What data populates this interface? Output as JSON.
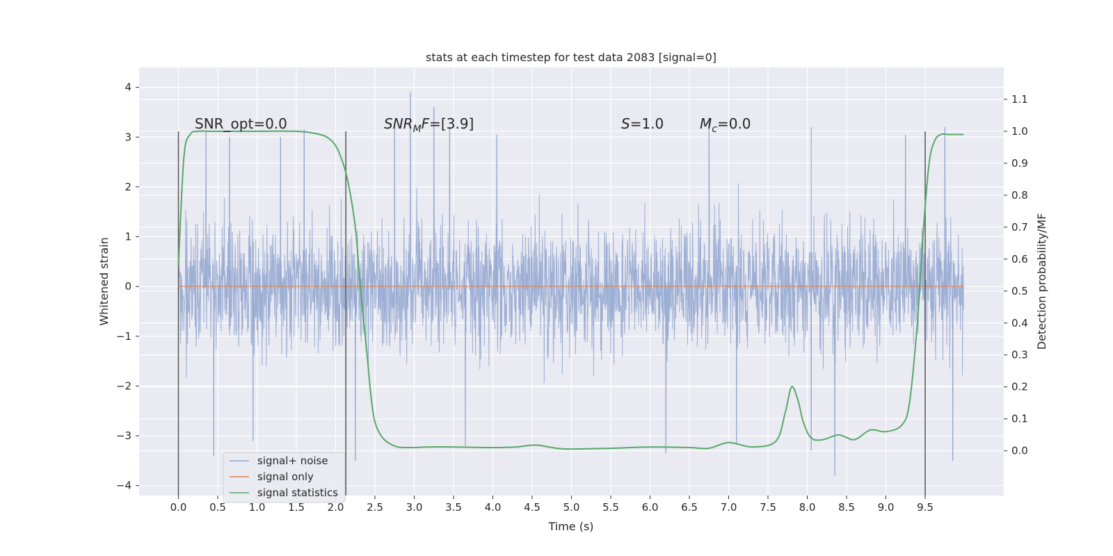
{
  "chart_data": {
    "type": "line",
    "title": "stats at each timestep for test data 2083 [signal=0]",
    "xlabel": "Time (s)",
    "ylabel": "Whitened strain",
    "y2label": "Detection probability/MF",
    "xlim": [
      -0.5,
      10.5
    ],
    "ylim": [
      -4.2,
      4.4
    ],
    "y2lim": [
      -0.14,
      1.2
    ],
    "x_ticks": [
      0.0,
      0.5,
      1.0,
      1.5,
      2.0,
      2.5,
      3.0,
      3.5,
      4.0,
      4.5,
      5.0,
      5.5,
      6.0,
      6.5,
      7.0,
      7.5,
      8.0,
      8.5,
      9.0,
      9.5
    ],
    "x_tick_labels": [
      "0.0",
      "0.5",
      "1.0",
      "1.5",
      "2.0",
      "2.5",
      "3.0",
      "3.5",
      "4.0",
      "4.5",
      "5.0",
      "5.5",
      "6.0",
      "6.5",
      "7.0",
      "7.5",
      "8.0",
      "8.5",
      "9.0",
      "9.5"
    ],
    "y_ticks": [
      4,
      3,
      2,
      1,
      0,
      -1,
      -2,
      -3,
      -4
    ],
    "y_tick_labels": [
      "4",
      "3",
      "2",
      "1",
      "0",
      "−1",
      "−2",
      "−3",
      "−4"
    ],
    "y2_ticks": [
      1.1,
      1.0,
      0.9,
      0.8,
      0.7,
      0.6,
      0.5,
      0.4,
      0.3,
      0.2,
      0.1,
      0.0
    ],
    "y2_tick_labels": [
      "1.1",
      "1.0",
      "0.9",
      "0.8",
      "0.7",
      "0.6",
      "0.5",
      "0.4",
      "0.3",
      "0.2",
      "0.1",
      "0.0"
    ],
    "grid": true,
    "legend_position": "lower-left",
    "annotations": {
      "snr_opt": "SNR_opt=0.0",
      "snr_mf_sym": "SNR",
      "snr_mf_sub": "M",
      "snr_mf_sym2": "F",
      "snr_mf_val": "=[3.9]",
      "s_sym": "S",
      "s_val": "=1.0",
      "mc_sym": "M",
      "mc_sub": "c",
      "mc_val": "=0.0"
    },
    "vertical_markers": [
      0.0,
      2.13,
      9.5
    ],
    "marker_range": [
      -0.14,
      1.0
    ],
    "series": [
      {
        "name": "signal+ noise",
        "color": "#8fa4cf",
        "axis": "left",
        "x_range": [
          0.0,
          9.99
        ],
        "envelope": {
          "typical_amplitude": 1.35,
          "max": 4.05,
          "min": -3.8,
          "peaks": [
            {
              "x": 0.35,
              "y": 3.1
            },
            {
              "x": 0.65,
              "y": 3.0
            },
            {
              "x": 1.3,
              "y": 3.0
            },
            {
              "x": 1.6,
              "y": 3.15
            },
            {
              "x": 2.75,
              "y": 3.3
            },
            {
              "x": 2.95,
              "y": 3.9
            },
            {
              "x": 3.25,
              "y": 3.6
            },
            {
              "x": 3.45,
              "y": 3.2
            },
            {
              "x": 4.05,
              "y": 3.05
            },
            {
              "x": 6.75,
              "y": 3.4
            },
            {
              "x": 8.05,
              "y": 3.2
            },
            {
              "x": 9.25,
              "y": 3.05
            },
            {
              "x": 9.75,
              "y": 3.2
            },
            {
              "x": 0.45,
              "y": -3.4
            },
            {
              "x": 0.95,
              "y": -3.1
            },
            {
              "x": 2.25,
              "y": -3.5
            },
            {
              "x": 3.65,
              "y": -3.2
            },
            {
              "x": 6.2,
              "y": -3.35
            },
            {
              "x": 7.1,
              "y": -3.15
            },
            {
              "x": 8.05,
              "y": -3.3
            },
            {
              "x": 8.35,
              "y": -3.8
            },
            {
              "x": 9.85,
              "y": -3.5
            }
          ]
        }
      },
      {
        "name": "signal only",
        "color": "#dd8452",
        "axis": "left",
        "x": [
          0.0,
          9.99
        ],
        "y": [
          0.0,
          0.0
        ]
      },
      {
        "name": "signal statistics",
        "color": "#55a868",
        "axis": "right",
        "x": [
          0.0,
          0.07,
          0.15,
          0.25,
          0.4,
          1.0,
          1.5,
          1.8,
          1.95,
          2.05,
          2.15,
          2.25,
          2.32,
          2.4,
          2.45,
          2.5,
          2.6,
          2.75,
          2.9,
          3.2,
          3.5,
          4.0,
          4.3,
          4.55,
          4.9,
          5.5,
          6.0,
          6.5,
          6.75,
          7.0,
          7.3,
          7.6,
          7.72,
          7.8,
          7.88,
          7.95,
          8.05,
          8.2,
          8.4,
          8.6,
          8.8,
          9.0,
          9.2,
          9.3,
          9.4,
          9.48,
          9.55,
          9.62,
          9.7,
          9.8,
          9.99
        ],
        "y": [
          0.58,
          0.92,
          0.99,
          1.0,
          1.0,
          1.0,
          1.0,
          0.99,
          0.97,
          0.93,
          0.85,
          0.7,
          0.5,
          0.3,
          0.17,
          0.09,
          0.04,
          0.015,
          0.01,
          0.012,
          0.012,
          0.01,
          0.012,
          0.018,
          0.006,
          0.008,
          0.012,
          0.01,
          0.008,
          0.026,
          0.012,
          0.03,
          0.12,
          0.2,
          0.16,
          0.09,
          0.04,
          0.035,
          0.05,
          0.035,
          0.065,
          0.06,
          0.08,
          0.15,
          0.4,
          0.7,
          0.9,
          0.97,
          0.99,
          0.99,
          0.99
        ]
      }
    ]
  }
}
